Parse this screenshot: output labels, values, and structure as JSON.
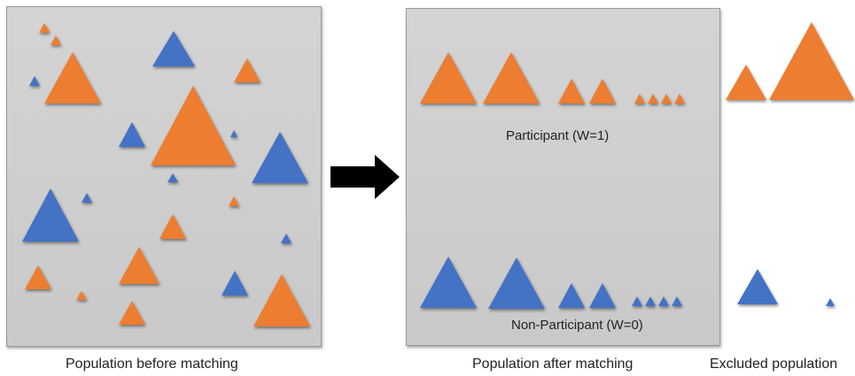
{
  "captions": {
    "before": "Population before matching",
    "after": "Population after matching",
    "excluded": "Excluded population"
  },
  "groups": {
    "participant": "Participant (W=1)",
    "non_participant": "Non-Participant (W=0)"
  },
  "colors": {
    "participant": "#ed7d31",
    "non_participant": "#4472c4",
    "arrow": "#000000"
  }
}
